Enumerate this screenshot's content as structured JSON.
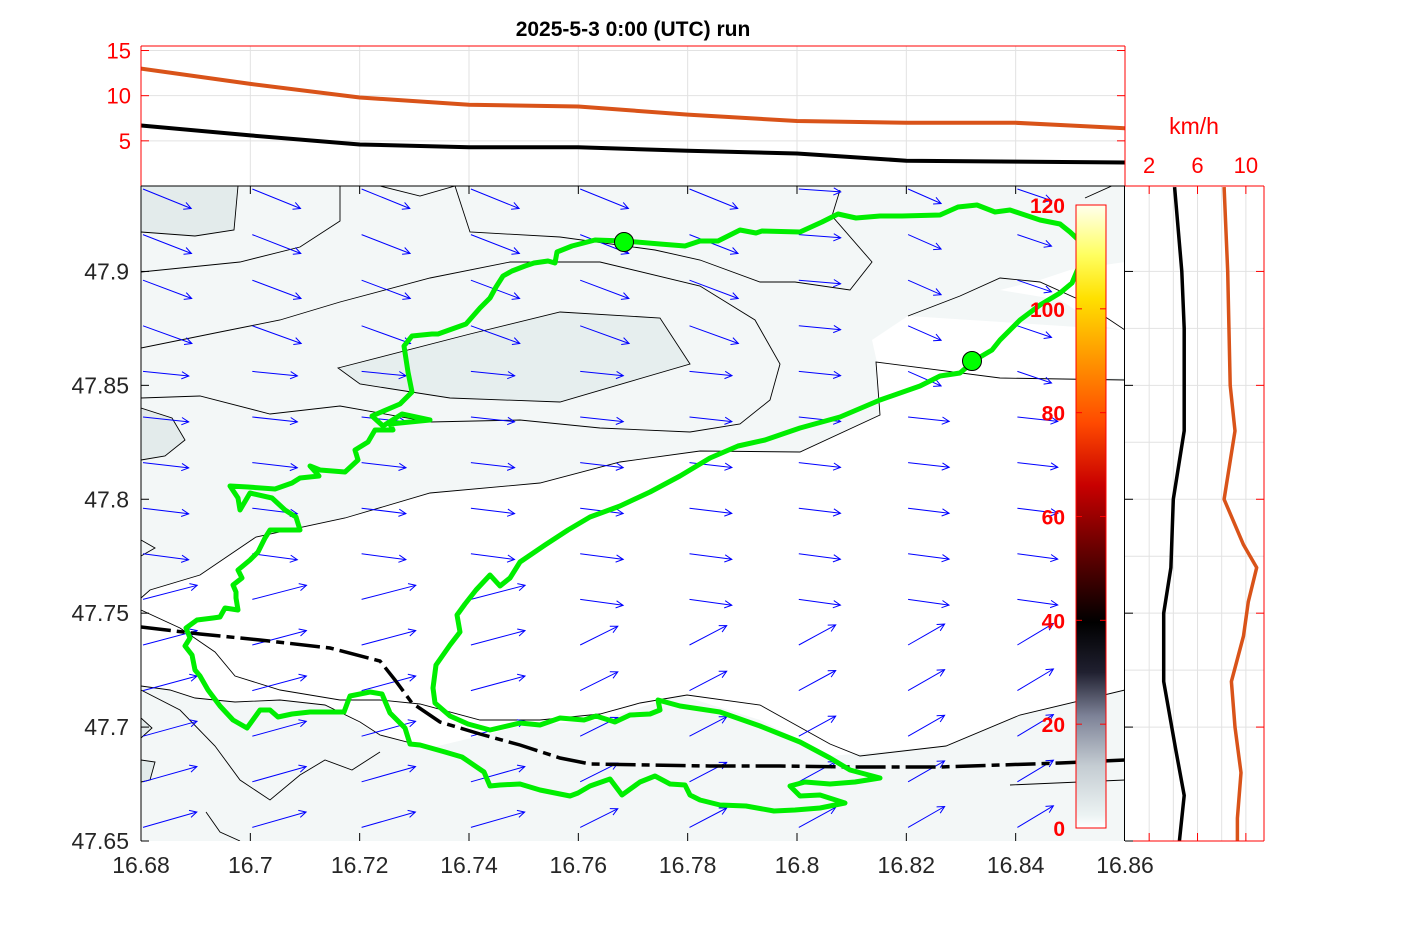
{
  "title": "2025-5-3  0:00 (UTC) run",
  "chart_data": [
    {
      "type": "line",
      "panel": "top time series",
      "x_range": [
        16.68,
        16.86
      ],
      "ylim": [
        0,
        15.5
      ],
      "yticks": [
        5,
        10,
        15
      ],
      "ytick_labels": [
        "5",
        "10",
        "15"
      ],
      "series": [
        {
          "color": "#d95319",
          "x": [
            16.68,
            16.7,
            16.72,
            16.74,
            16.76,
            16.78,
            16.8,
            16.82,
            16.84,
            16.86
          ],
          "values": [
            13.0,
            11.3,
            9.8,
            9.0,
            8.8,
            7.9,
            7.2,
            7.0,
            7.0,
            6.4
          ]
        },
        {
          "color": "#000000",
          "x": [
            16.68,
            16.7,
            16.72,
            16.74,
            16.76,
            16.78,
            16.8,
            16.82,
            16.84,
            16.86
          ],
          "values": [
            6.7,
            5.6,
            4.6,
            4.3,
            4.3,
            3.9,
            3.6,
            2.8,
            2.7,
            2.6
          ]
        }
      ]
    },
    {
      "type": "line",
      "panel": "right wind profile",
      "xlabel": "km/h",
      "xlim": [
        0,
        11.5
      ],
      "xticks": [
        2,
        6,
        10
      ],
      "xtick_labels": [
        "2",
        "6",
        "10"
      ],
      "ylim": [
        47.65,
        47.9375
      ],
      "series": [
        {
          "color": "#000000",
          "y": [
            47.937,
            47.9,
            47.875,
            47.85,
            47.83,
            47.8,
            47.77,
            47.75,
            47.72,
            47.69,
            47.67,
            47.65
          ],
          "values": [
            4.1,
            4.7,
            4.9,
            4.9,
            4.9,
            4.0,
            3.8,
            3.2,
            3.2,
            4.2,
            4.9,
            4.5
          ]
        },
        {
          "color": "#d95319",
          "y": [
            47.937,
            47.9,
            47.85,
            47.83,
            47.8,
            47.78,
            47.77,
            47.755,
            47.74,
            47.72,
            47.7,
            47.68,
            47.66,
            47.65
          ],
          "values": [
            8.2,
            8.5,
            8.7,
            9.1,
            8.2,
            9.8,
            10.9,
            10.2,
            9.8,
            8.8,
            9.1,
            9.6,
            9.3,
            9.3
          ]
        }
      ]
    },
    {
      "type": "map",
      "panel": "main map",
      "xlim": [
        16.68,
        16.86
      ],
      "ylim": [
        47.65,
        47.9375
      ],
      "xticks": [
        16.68,
        16.7,
        16.72,
        16.74,
        16.76,
        16.78,
        16.8,
        16.82,
        16.84,
        16.86
      ],
      "xtick_labels": [
        "16.68",
        "16.7",
        "16.72",
        "16.74",
        "16.76",
        "16.78",
        "16.8",
        "16.82",
        "16.84",
        "16.86"
      ],
      "yticks": [
        47.65,
        47.7,
        47.75,
        47.8,
        47.85,
        47.9
      ],
      "ytick_labels": [
        "47.65",
        "47.7",
        "47.75",
        "47.8",
        "47.85",
        "47.9"
      ],
      "contour_levels": [
        0,
        5,
        10
      ],
      "lake_outline_color": "#00ff00",
      "border_line_color": "#000000",
      "wind_arrow_color": "#0000ff",
      "colorbar": {
        "range": [
          0,
          120
        ],
        "ticks": [
          0,
          20,
          40,
          60,
          80,
          100,
          120
        ],
        "tick_labels": [
          "0",
          "20",
          "40",
          "60",
          "80",
          "100",
          "120"
        ]
      },
      "markers": [
        {
          "lon": 16.769,
          "lat": 47.916,
          "color": "#00ff00"
        },
        {
          "lon": 16.832,
          "lat": 47.864,
          "color": "#00ff00"
        }
      ]
    }
  ]
}
